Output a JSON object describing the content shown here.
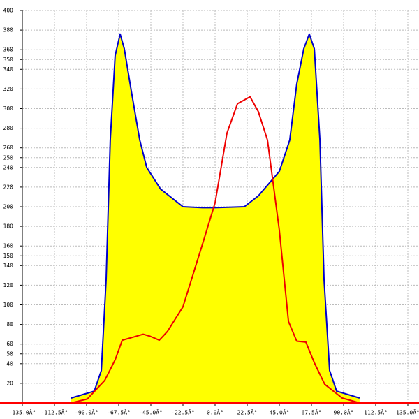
{
  "chart_data": {
    "type": "area",
    "xlim": [
      -135,
      135
    ],
    "ylim": [
      0,
      400
    ],
    "xticks": [
      {
        "value": -135,
        "label": "-135.0Â°"
      },
      {
        "value": -112.5,
        "label": "-112.5Â°"
      },
      {
        "value": -90,
        "label": "-90.0Â°"
      },
      {
        "value": -67.5,
        "label": "-67.5Â°"
      },
      {
        "value": -45,
        "label": "-45.0Â°"
      },
      {
        "value": -22.5,
        "label": "-22.5Â°"
      },
      {
        "value": 0,
        "label": "0.0Â°"
      },
      {
        "value": 22.5,
        "label": "22.5Â°"
      },
      {
        "value": 45,
        "label": "45.0Â°"
      },
      {
        "value": 67.5,
        "label": "67.5Â°"
      },
      {
        "value": 90,
        "label": "90.0Â°"
      },
      {
        "value": 112.5,
        "label": "112.5Â°"
      },
      {
        "value": 135,
        "label": "135.0Â°"
      }
    ],
    "yticks": [
      20,
      40,
      50,
      60,
      80,
      100,
      120,
      140,
      150,
      160,
      180,
      200,
      220,
      240,
      250,
      260,
      280,
      300,
      320,
      340,
      350,
      360,
      380,
      400
    ],
    "grid": true,
    "axis_color": "#ff0000",
    "series": [
      {
        "color": "#0000cc",
        "fill": "#ffff00",
        "x": [
          -100.8,
          -84.6,
          -79.7,
          -76.3,
          -73.4,
          -70,
          -66.5,
          -63.6,
          -58.7,
          -52.8,
          -47.9,
          -38.2,
          -22.5,
          -8.8,
          0,
          20.5,
          30.3,
          45,
          52.3,
          57.2,
          62.1,
          66,
          69.5,
          73.4,
          76.3,
          80.2,
          85.1,
          101.2
        ],
        "values": [
          5,
          12,
          33,
          126,
          268,
          354,
          376,
          361,
          318,
          268,
          240,
          218,
          200,
          199,
          199,
          200,
          211,
          236,
          268,
          325,
          361,
          376,
          361,
          268,
          126,
          33,
          12,
          5
        ]
      },
      {
        "color": "#ee0000",
        "x": [
          -100.8,
          -89.5,
          -77.3,
          -70,
          -65,
          -57.7,
          -50.4,
          -45.5,
          -39.1,
          -33.3,
          -22.5,
          -8.8,
          0,
          8.3,
          15.7,
          24.5,
          30.3,
          36.7,
          45,
          51.4,
          57.2,
          63.6,
          69.5,
          76.8,
          89,
          101.2
        ],
        "values": [
          0,
          4,
          23,
          44,
          64,
          67,
          70,
          68,
          64,
          73,
          98,
          162,
          204,
          275,
          305,
          312,
          297,
          268,
          176,
          83,
          63,
          62,
          41,
          19,
          5,
          0
        ]
      }
    ]
  }
}
